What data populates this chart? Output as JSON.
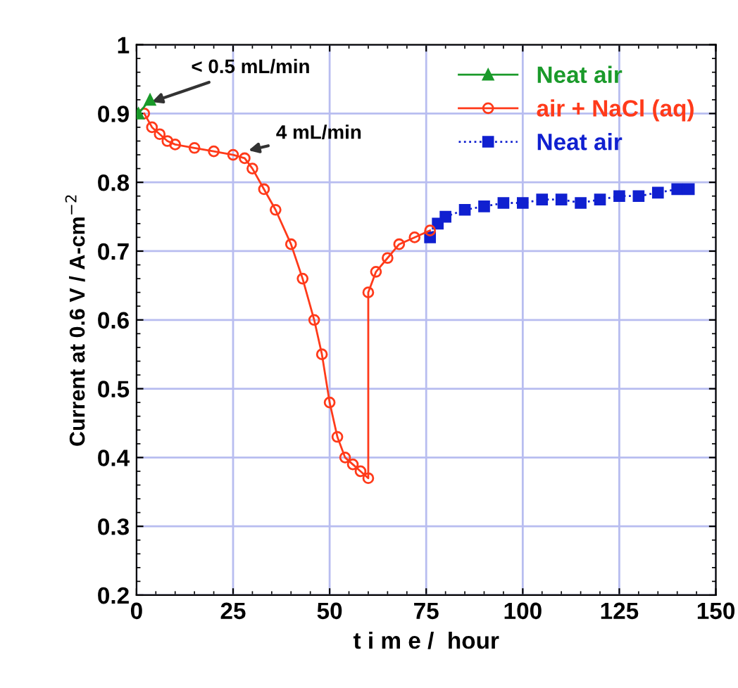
{
  "chart_data": {
    "type": "line",
    "xlabel": "t i m e /  hour",
    "ylabel": "Current at 0.6 V / A-cm$^{−2}$",
    "xlim": [
      0,
      150
    ],
    "xticks": [
      0,
      25,
      50,
      75,
      100,
      125,
      150
    ],
    "ylim": [
      0.2,
      1
    ],
    "yticks": [
      0.2,
      0.3,
      0.4,
      0.5,
      0.6,
      0.7,
      0.8,
      0.9,
      1
    ],
    "grid": true,
    "legend": "top right",
    "annotations": [
      {
        "text": "< 0.5 mL/min",
        "x": 3,
        "y": 0.915
      },
      {
        "text": "4 mL/min",
        "x": 28,
        "y": 0.845
      }
    ],
    "series": [
      {
        "name": "Neat air",
        "color": "#1a9a2a",
        "marker": "triangle",
        "line_style": "solid",
        "x": [
          0.5,
          3.5
        ],
        "values": [
          0.9,
          0.92
        ]
      },
      {
        "name": "air + NaCl (aq)",
        "color": "#ff3a1a",
        "marker": "circle",
        "line_style": "solid",
        "x": [
          2,
          4,
          6,
          8,
          10,
          15,
          20,
          25,
          28,
          30,
          33,
          36,
          40,
          43,
          46,
          48,
          50,
          52,
          54,
          56,
          58,
          60,
          60,
          62,
          65,
          68,
          72,
          76
        ],
        "values": [
          0.9,
          0.88,
          0.87,
          0.86,
          0.855,
          0.85,
          0.845,
          0.84,
          0.835,
          0.82,
          0.79,
          0.76,
          0.71,
          0.66,
          0.6,
          0.55,
          0.48,
          0.43,
          0.4,
          0.39,
          0.38,
          0.37,
          0.64,
          0.67,
          0.69,
          0.71,
          0.72,
          0.73
        ]
      },
      {
        "name": "Neat air",
        "color": "#1020d0",
        "marker": "square",
        "line_style": "dotted",
        "x": [
          76,
          78,
          80,
          85,
          90,
          95,
          100,
          105,
          110,
          115,
          120,
          125,
          130,
          135,
          140,
          143
        ],
        "values": [
          0.72,
          0.74,
          0.75,
          0.76,
          0.765,
          0.77,
          0.77,
          0.775,
          0.775,
          0.77,
          0.775,
          0.78,
          0.78,
          0.785,
          0.79,
          0.79
        ]
      }
    ]
  }
}
